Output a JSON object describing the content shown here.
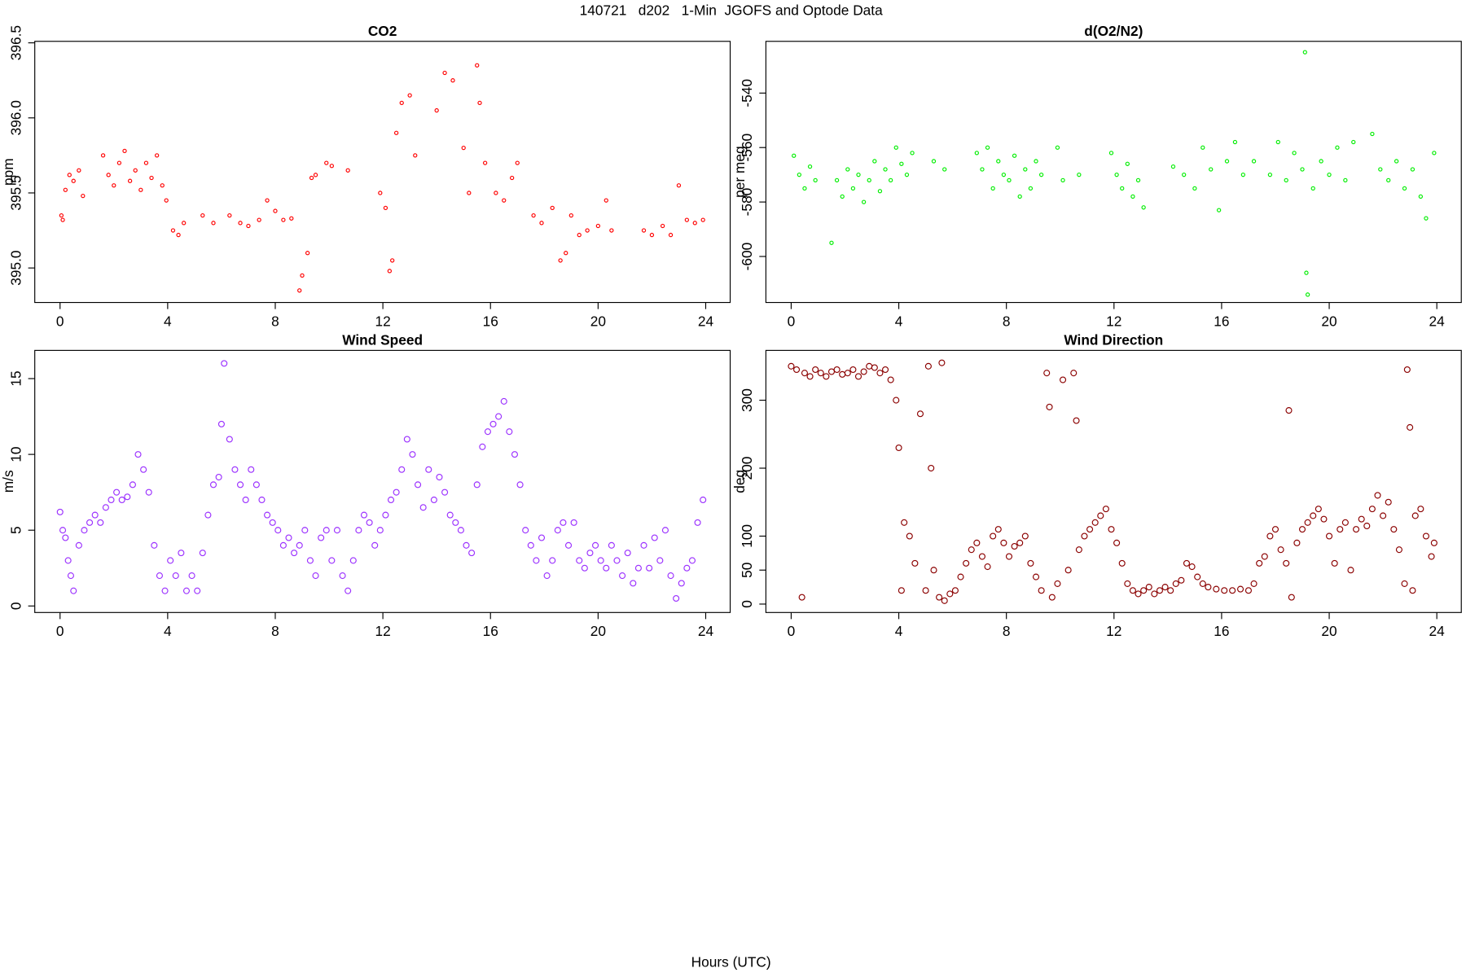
{
  "figure": {
    "title": "140721   d202   1-Min  JGOFS and Optode Data",
    "xlabel": "Hours (UTC)"
  },
  "chart_data": [
    {
      "type": "scatter",
      "title": "CO2",
      "ylabel": "ppm",
      "color": "#ff0000",
      "x": [
        0.05,
        0.1,
        0.2,
        0.35,
        0.5,
        0.7,
        0.85,
        1.6,
        1.8,
        2.0,
        2.2,
        2.4,
        2.6,
        2.8,
        3.0,
        3.2,
        3.4,
        3.6,
        3.8,
        3.95,
        4.2,
        4.4,
        4.6,
        5.3,
        5.7,
        6.3,
        6.7,
        7.0,
        7.4,
        7.7,
        8.0,
        8.3,
        8.6,
        8.9,
        9.0,
        9.2,
        9.35,
        9.5,
        9.9,
        10.1,
        10.7,
        11.9,
        12.1,
        12.25,
        12.35,
        12.5,
        12.7,
        13.0,
        13.2,
        14.0,
        14.3,
        14.6,
        15.0,
        15.2,
        15.5,
        15.6,
        15.8,
        16.2,
        16.5,
        16.8,
        17.0,
        17.6,
        17.9,
        18.3,
        18.6,
        18.8,
        19.0,
        19.3,
        19.6,
        20.0,
        20.3,
        20.5,
        21.7,
        22.0,
        22.4,
        22.7,
        23.0,
        23.3,
        23.6,
        23.9
      ],
      "values": [
        395.35,
        395.32,
        395.52,
        395.62,
        395.58,
        395.65,
        395.48,
        395.75,
        395.62,
        395.55,
        395.7,
        395.78,
        395.58,
        395.65,
        395.52,
        395.7,
        395.6,
        395.75,
        395.55,
        395.45,
        395.25,
        395.22,
        395.3,
        395.35,
        395.3,
        395.35,
        395.3,
        395.28,
        395.32,
        395.45,
        395.38,
        395.32,
        395.33,
        394.85,
        394.95,
        395.1,
        395.6,
        395.62,
        395.7,
        395.68,
        395.65,
        395.5,
        395.4,
        394.98,
        395.05,
        395.9,
        396.1,
        396.15,
        395.75,
        396.05,
        396.3,
        396.25,
        395.8,
        395.5,
        396.35,
        396.1,
        395.7,
        395.5,
        395.45,
        395.6,
        395.7,
        395.35,
        395.3,
        395.4,
        395.05,
        395.1,
        395.35,
        395.22,
        395.25,
        395.28,
        395.45,
        395.25,
        395.25,
        395.22,
        395.28,
        395.22,
        395.55,
        395.32,
        395.3,
        395.32
      ],
      "xlim": [
        -0.94,
        24.91
      ],
      "ylim": [
        394.77,
        396.51
      ],
      "xticks": [
        0,
        4,
        8,
        12,
        16,
        20,
        24
      ],
      "yticks": [
        {
          "value": 395,
          "label": "395.0"
        },
        395.5,
        {
          "value": 396,
          "label": "396.0"
        },
        396.5
      ]
    },
    {
      "type": "scatter",
      "title": "d(O2/N2)",
      "ylabel": "per meg",
      "color": "#00ee00",
      "x": [
        0.1,
        0.3,
        0.5,
        0.7,
        0.9,
        1.5,
        1.7,
        1.9,
        2.1,
        2.3,
        2.5,
        2.7,
        2.9,
        3.1,
        3.3,
        3.5,
        3.7,
        3.9,
        4.1,
        4.3,
        4.5,
        5.3,
        5.7,
        6.9,
        7.1,
        7.3,
        7.5,
        7.7,
        7.9,
        8.1,
        8.3,
        8.5,
        8.7,
        8.9,
        9.1,
        9.3,
        9.9,
        10.1,
        10.7,
        11.9,
        12.1,
        12.3,
        12.5,
        12.7,
        12.9,
        13.1,
        14.2,
        14.6,
        15.0,
        15.3,
        15.6,
        15.9,
        16.2,
        16.5,
        16.8,
        17.2,
        17.8,
        18.1,
        18.4,
        18.7,
        19.0,
        19.1,
        19.15,
        19.2,
        19.4,
        19.7,
        20.0,
        20.3,
        20.6,
        20.9,
        21.6,
        21.9,
        22.2,
        22.5,
        22.8,
        23.1,
        23.4,
        23.6,
        23.9
      ],
      "values": [
        -563,
        -570,
        -575,
        -567,
        -572,
        -595,
        -572,
        -578,
        -568,
        -575,
        -570,
        -580,
        -572,
        -565,
        -576,
        -568,
        -572,
        -560,
        -566,
        -570,
        -562,
        -565,
        -568,
        -562,
        -568,
        -560,
        -575,
        -565,
        -570,
        -572,
        -563,
        -578,
        -568,
        -575,
        -565,
        -570,
        -560,
        -572,
        -570,
        -562,
        -570,
        -575,
        -566,
        -578,
        -572,
        -582,
        -567,
        -570,
        -575,
        -560,
        -568,
        -583,
        -565,
        -558,
        -570,
        -565,
        -570,
        -558,
        -572,
        -562,
        -568,
        -525,
        -606,
        -614,
        -575,
        -565,
        -570,
        -560,
        -572,
        -558,
        -555,
        -568,
        -572,
        -565,
        -575,
        -568,
        -578,
        -586,
        -562
      ],
      "xlim": [
        -0.94,
        24.91
      ],
      "ylim": [
        -616.9,
        -521
      ],
      "xticks": [
        0,
        4,
        8,
        12,
        16,
        20,
        24
      ],
      "yticks": [
        -600,
        -580,
        -560,
        -540
      ]
    },
    {
      "type": "scatter",
      "title": "Wind Speed",
      "ylabel": "m/s",
      "color": "#9b30ff",
      "x": [
        0,
        0.1,
        0.2,
        0.3,
        0.4,
        0.5,
        0.7,
        0.9,
        1.1,
        1.3,
        1.5,
        1.7,
        1.9,
        2.1,
        2.3,
        2.5,
        2.7,
        2.9,
        3.1,
        3.3,
        3.5,
        3.7,
        3.9,
        4.1,
        4.3,
        4.5,
        4.7,
        4.9,
        5.1,
        5.3,
        5.5,
        5.7,
        5.9,
        6.0,
        6.1,
        6.3,
        6.5,
        6.7,
        6.9,
        7.1,
        7.3,
        7.5,
        7.7,
        7.9,
        8.1,
        8.3,
        8.5,
        8.7,
        8.9,
        9.1,
        9.3,
        9.5,
        9.7,
        9.9,
        10.1,
        10.3,
        10.5,
        10.7,
        10.9,
        11.1,
        11.3,
        11.5,
        11.7,
        11.9,
        12.1,
        12.3,
        12.5,
        12.7,
        12.9,
        13.1,
        13.3,
        13.5,
        13.7,
        13.9,
        14.1,
        14.3,
        14.5,
        14.7,
        14.9,
        15.1,
        15.3,
        15.5,
        15.7,
        15.9,
        16.1,
        16.3,
        16.5,
        16.7,
        16.9,
        17.1,
        17.3,
        17.5,
        17.7,
        17.9,
        18.1,
        18.3,
        18.5,
        18.7,
        18.9,
        19.1,
        19.3,
        19.5,
        19.7,
        19.9,
        20.1,
        20.3,
        20.5,
        20.7,
        20.9,
        21.1,
        21.3,
        21.5,
        21.7,
        21.9,
        22.1,
        22.3,
        22.5,
        22.7,
        22.9,
        23.1,
        23.3,
        23.5,
        23.7,
        23.9
      ],
      "values": [
        6.2,
        5,
        4.5,
        3,
        2,
        1,
        4,
        5,
        5.5,
        6,
        5.5,
        6.5,
        7,
        7.5,
        7,
        7.2,
        8,
        10,
        9,
        7.5,
        4,
        2,
        1,
        3,
        2,
        3.5,
        1,
        2,
        1,
        3.5,
        6,
        8,
        8.5,
        12,
        16,
        11,
        9,
        8,
        7,
        9,
        8,
        7,
        6,
        5.5,
        5,
        4,
        4.5,
        3.5,
        4,
        5,
        3,
        2,
        4.5,
        5,
        3,
        5,
        2,
        1,
        3,
        5,
        6,
        5.5,
        4,
        5,
        6,
        7,
        7.5,
        9,
        11,
        10,
        8,
        6.5,
        9,
        7,
        8.5,
        7.5,
        6,
        5.5,
        5,
        4,
        3.5,
        8,
        10.5,
        11.5,
        12,
        12.5,
        13.5,
        11.5,
        10,
        8,
        5,
        4,
        3,
        4.5,
        2,
        3,
        5,
        5.5,
        4,
        5.5,
        3,
        2.5,
        3.5,
        4,
        3,
        2.5,
        4,
        3,
        2,
        3.5,
        1.5,
        2.5,
        4,
        2.5,
        4.5,
        3,
        5,
        2,
        0.5,
        1.5,
        2.5,
        3,
        5.5,
        7
      ],
      "xlim": [
        -0.94,
        24.91
      ],
      "ylim": [
        -0.43,
        16.86
      ],
      "xticks": [
        0,
        4,
        8,
        12,
        16,
        20,
        24
      ],
      "yticks": [
        0,
        5,
        10,
        15
      ]
    },
    {
      "type": "scatter",
      "title": "Wind Direction",
      "ylabel": "deg",
      "color": "#8b0000",
      "x": [
        0,
        0.2,
        0.4,
        0.5,
        0.7,
        0.9,
        1.1,
        1.3,
        1.5,
        1.7,
        1.9,
        2.1,
        2.3,
        2.5,
        2.7,
        2.9,
        3.1,
        3.3,
        3.5,
        3.7,
        3.9,
        4.0,
        4.1,
        4.2,
        4.4,
        4.6,
        4.8,
        5.0,
        5.1,
        5.2,
        5.3,
        5.5,
        5.6,
        5.7,
        5.9,
        6.1,
        6.3,
        6.5,
        6.7,
        6.9,
        7.1,
        7.3,
        7.5,
        7.7,
        7.9,
        8.1,
        8.3,
        8.5,
        8.7,
        8.9,
        9.1,
        9.3,
        9.5,
        9.6,
        9.7,
        9.9,
        10.1,
        10.3,
        10.5,
        10.6,
        10.7,
        10.9,
        11.1,
        11.3,
        11.5,
        11.7,
        11.9,
        12.1,
        12.3,
        12.5,
        12.7,
        12.9,
        13.1,
        13.3,
        13.5,
        13.7,
        13.9,
        14.1,
        14.3,
        14.5,
        14.7,
        14.9,
        15.1,
        15.3,
        15.5,
        15.8,
        16.1,
        16.4,
        16.7,
        17.0,
        17.2,
        17.4,
        17.6,
        17.8,
        18.0,
        18.2,
        18.4,
        18.5,
        18.6,
        18.8,
        19.0,
        19.2,
        19.4,
        19.6,
        19.8,
        20.0,
        20.2,
        20.4,
        20.6,
        20.8,
        21.0,
        21.2,
        21.4,
        21.6,
        21.8,
        22.0,
        22.2,
        22.4,
        22.6,
        22.8,
        22.9,
        23.0,
        23.1,
        23.2,
        23.4,
        23.6,
        23.8,
        23.9
      ],
      "values": [
        350,
        345,
        10,
        340,
        335,
        345,
        340,
        335,
        342,
        345,
        338,
        340,
        345,
        335,
        342,
        350,
        348,
        340,
        345,
        330,
        300,
        230,
        20,
        120,
        100,
        60,
        280,
        20,
        350,
        200,
        50,
        10,
        355,
        5,
        15,
        20,
        40,
        60,
        80,
        90,
        70,
        55,
        100,
        110,
        90,
        70,
        85,
        90,
        100,
        60,
        40,
        20,
        340,
        290,
        10,
        30,
        330,
        50,
        340,
        270,
        80,
        100,
        110,
        120,
        130,
        140,
        110,
        90,
        60,
        30,
        20,
        15,
        20,
        25,
        15,
        20,
        25,
        20,
        30,
        35,
        60,
        55,
        40,
        30,
        25,
        22,
        20,
        20,
        22,
        20,
        30,
        60,
        70,
        100,
        110,
        80,
        60,
        285,
        10,
        90,
        110,
        120,
        130,
        140,
        125,
        100,
        60,
        110,
        120,
        50,
        110,
        125,
        115,
        140,
        160,
        130,
        150,
        110,
        80,
        30,
        345,
        260,
        20,
        130,
        140,
        100,
        70,
        90
      ],
      "xlim": [
        -0.94,
        24.91
      ],
      "ylim": [
        -12.4,
        373.3
      ],
      "xticks": [
        0,
        4,
        8,
        12,
        16,
        20,
        24
      ],
      "yticks": [
        0,
        50,
        100,
        200,
        300
      ]
    }
  ]
}
